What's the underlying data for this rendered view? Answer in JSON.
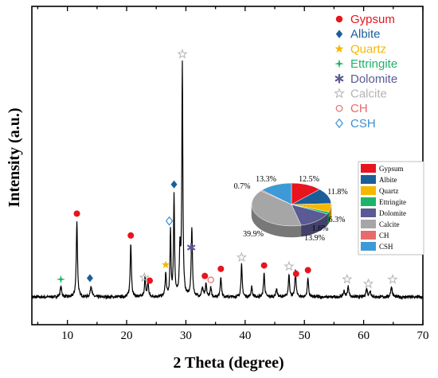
{
  "chart_data": [
    {
      "type": "line",
      "xlabel": "2 Theta (degree)",
      "ylabel": "Intensity (a.u.)",
      "xlim": [
        4,
        70
      ],
      "xticks": [
        10,
        20,
        30,
        40,
        50,
        60,
        70
      ],
      "grid": false,
      "legend_placement": "top-right",
      "baseline": 0.03,
      "peaks": [
        {
          "x": 8.9,
          "y": 0.045,
          "w": 0.15
        },
        {
          "x": 11.6,
          "y": 0.33,
          "w": 0.12
        },
        {
          "x": 14.0,
          "y": 0.05,
          "w": 0.15
        },
        {
          "x": 20.7,
          "y": 0.235,
          "w": 0.12
        },
        {
          "x": 23.1,
          "y": 0.08,
          "w": 0.12
        },
        {
          "x": 23.6,
          "y": 0.06,
          "w": 0.12
        },
        {
          "x": 26.6,
          "y": 0.1,
          "w": 0.12
        },
        {
          "x": 27.4,
          "y": 0.28,
          "w": 0.1
        },
        {
          "x": 28.0,
          "y": 0.44,
          "w": 0.1
        },
        {
          "x": 29.0,
          "y": 0.2,
          "w": 0.12
        },
        {
          "x": 29.4,
          "y": 1.0,
          "w": 0.1
        },
        {
          "x": 31.0,
          "y": 0.3,
          "w": 0.12
        },
        {
          "x": 32.8,
          "y": 0.04,
          "w": 0.15
        },
        {
          "x": 33.4,
          "y": 0.055,
          "w": 0.12
        },
        {
          "x": 34.2,
          "y": 0.04,
          "w": 0.12
        },
        {
          "x": 35.9,
          "y": 0.09,
          "w": 0.12
        },
        {
          "x": 39.4,
          "y": 0.14,
          "w": 0.12
        },
        {
          "x": 41.1,
          "y": 0.045,
          "w": 0.12
        },
        {
          "x": 43.2,
          "y": 0.105,
          "w": 0.12
        },
        {
          "x": 45.3,
          "y": 0.035,
          "w": 0.15
        },
        {
          "x": 47.4,
          "y": 0.1,
          "w": 0.12
        },
        {
          "x": 48.5,
          "y": 0.115,
          "w": 0.12
        },
        {
          "x": 50.6,
          "y": 0.085,
          "w": 0.12
        },
        {
          "x": 56.7,
          "y": 0.025,
          "w": 0.15
        },
        {
          "x": 57.4,
          "y": 0.045,
          "w": 0.15
        },
        {
          "x": 60.5,
          "y": 0.035,
          "w": 0.15
        },
        {
          "x": 61.1,
          "y": 0.025,
          "w": 0.15
        },
        {
          "x": 64.7,
          "y": 0.045,
          "w": 0.15
        }
      ],
      "markers": [
        {
          "phase": "Gypsum",
          "x": 11.6
        },
        {
          "phase": "Gypsum",
          "x": 20.7
        },
        {
          "phase": "Gypsum",
          "x": 23.9
        },
        {
          "phase": "Gypsum",
          "x": 33.2
        },
        {
          "phase": "Gypsum",
          "x": 35.9
        },
        {
          "phase": "Gypsum",
          "x": 43.2
        },
        {
          "phase": "Gypsum",
          "x": 48.6
        },
        {
          "phase": "Gypsum",
          "x": 50.6
        },
        {
          "phase": "Albite",
          "x": 13.8
        },
        {
          "phase": "Albite",
          "x": 28.0
        },
        {
          "phase": "Quartz",
          "x": 26.6
        },
        {
          "phase": "Ettringite",
          "x": 8.9
        },
        {
          "phase": "Dolomite",
          "x": 30.9
        },
        {
          "phase": "Calcite",
          "x": 23.0
        },
        {
          "phase": "Calcite",
          "x": 29.4
        },
        {
          "phase": "Calcite",
          "x": 39.4
        },
        {
          "phase": "Calcite",
          "x": 47.4
        },
        {
          "phase": "Calcite",
          "x": 57.2
        },
        {
          "phase": "Calcite",
          "x": 60.8
        },
        {
          "phase": "Calcite",
          "x": 64.9
        },
        {
          "phase": "CH",
          "x": 34.2
        },
        {
          "phase": "CSH",
          "x": 27.2
        }
      ],
      "legend": [
        {
          "name": "Gypsum",
          "color": "#e8141e",
          "symbol": "circle"
        },
        {
          "name": "Albite",
          "color": "#1a5e99",
          "symbol": "diamond"
        },
        {
          "name": "Quartz",
          "color": "#f5b800",
          "symbol": "star"
        },
        {
          "name": "Ettringite",
          "color": "#1eb36b",
          "symbol": "star4"
        },
        {
          "name": "Dolomite",
          "color": "#5a5a94",
          "symbol": "asterisk"
        },
        {
          "name": "Calcite",
          "color": "#b4b4b4",
          "symbol": "star-open"
        },
        {
          "name": "CH",
          "color": "#e86a6a",
          "symbol": "circle-open"
        },
        {
          "name": "CSH",
          "color": "#3d8fd1",
          "symbol": "diamond-open"
        }
      ]
    },
    {
      "type": "pie",
      "slices": [
        {
          "name": "Gypsum",
          "value": 12.5,
          "label": "12.5%",
          "color": "#e8141e"
        },
        {
          "name": "Albite",
          "value": 11.8,
          "label": "11.8%",
          "color": "#1a5e99"
        },
        {
          "name": "Quartz",
          "value": 6.3,
          "label": "6.3%",
          "color": "#f5b800"
        },
        {
          "name": "Ettringite",
          "value": 1.6,
          "label": "1.6%",
          "color": "#1eb36b"
        },
        {
          "name": "Dolomite",
          "value": 13.9,
          "label": "13.9%",
          "color": "#5a5a94"
        },
        {
          "name": "Calcite",
          "value": 39.9,
          "label": "39.9%",
          "color": "#a6a6a6"
        },
        {
          "name": "CH",
          "value": 0.7,
          "label": "0.7%",
          "color": "#e86a6a"
        },
        {
          "name": "CSH",
          "value": 13.3,
          "label": "13.3%",
          "color": "#3d9ad6"
        }
      ]
    }
  ]
}
